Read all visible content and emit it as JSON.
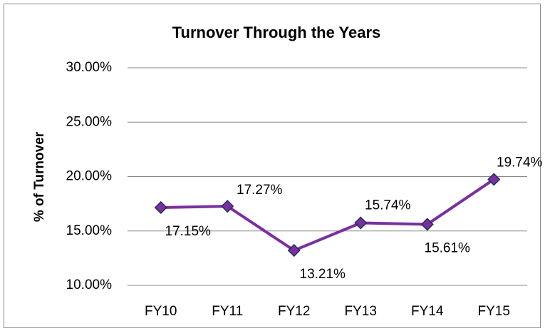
{
  "chart_data": {
    "type": "line",
    "title": "Turnover Through the Years",
    "y_label": "% of Turnover",
    "categories": [
      "FY10",
      "FY11",
      "FY12",
      "FY13",
      "FY14",
      "FY15"
    ],
    "series": [
      {
        "name": "% of Turnover",
        "color": "#7b2f9e",
        "marker_color": "#7b2f9e",
        "marker_edge": "#1f2f5c",
        "values": [
          17.15,
          17.27,
          13.21,
          15.74,
          15.61,
          19.74
        ],
        "value_labels": [
          "17.15%",
          "17.27%",
          "13.21%",
          "15.74%",
          "15.61%",
          "19.74%"
        ]
      }
    ],
    "ylim": [
      10,
      30
    ],
    "yticks": [
      {
        "value": 10,
        "label": "10.00%"
      },
      {
        "value": 15,
        "label": "15.00%"
      },
      {
        "value": 20,
        "label": "20.00%"
      },
      {
        "value": 25,
        "label": "25.00%"
      },
      {
        "value": 30,
        "label": "30.00%"
      }
    ],
    "grid": true
  }
}
